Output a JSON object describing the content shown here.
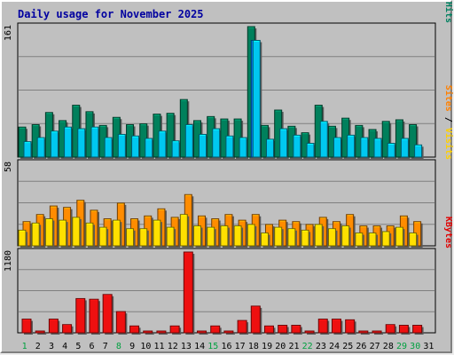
{
  "chart_data": {
    "type": "bar",
    "title": "Daily usage for November 2025",
    "categories": [
      "1",
      "2",
      "3",
      "4",
      "5",
      "6",
      "7",
      "8",
      "9",
      "10",
      "11",
      "12",
      "13",
      "14",
      "15",
      "16",
      "17",
      "18",
      "19",
      "20",
      "21",
      "22",
      "23",
      "24",
      "25",
      "26",
      "27",
      "28",
      "29",
      "30",
      "31"
    ],
    "weekend_days": [
      "1",
      "8",
      "15",
      "22",
      "29",
      "30"
    ],
    "panels": [
      {
        "name": "pages_files_hits",
        "max_label": "161",
        "ymax": 161,
        "legend": [
          {
            "text": "Pages",
            "color": "#00e0ff"
          },
          {
            "text": "Files",
            "color": "#0040ff"
          },
          {
            "text": "Hits",
            "color": "#008060"
          }
        ],
        "series": [
          {
            "name": "Hits",
            "color": "#00805c",
            "values": [
              37,
              40,
              55,
              45,
              64,
              56,
              39,
              49,
              40,
              41,
              53,
              54,
              71,
              45,
              50,
              47,
              47,
              161,
              39,
              58,
              38,
              30,
              64,
              38,
              48,
              39,
              34,
              44,
              46,
              40,
              null
            ]
          },
          {
            "name": "Files",
            "color": "#0080ff",
            "values": [
              0,
              0,
              0,
              0,
              0,
              0,
              0,
              0,
              0,
              0,
              0,
              0,
              0,
              0,
              0,
              0,
              0,
              144,
              0,
              0,
              0,
              0,
              0,
              0,
              0,
              0,
              0,
              0,
              0,
              0,
              null
            ]
          },
          {
            "name": "Pages",
            "color": "#00c8f0",
            "values": [
              19,
              24,
              32,
              37,
              35,
              37,
              24,
              28,
              26,
              23,
              32,
              20,
              40,
              28,
              35,
              26,
              24,
              144,
              22,
              35,
              27,
              17,
              44,
              24,
              27,
              24,
              23,
              17,
              23,
              15,
              null
            ]
          }
        ]
      },
      {
        "name": "visits_sites",
        "max_label": "58",
        "ymax": 58,
        "legend": [
          {
            "text": "Sites",
            "color": "#ff8000"
          },
          {
            "text": "Visits",
            "color": "#ffd000"
          }
        ],
        "series": [
          {
            "name": "Visits",
            "color": "#ff8c00",
            "values": [
              17,
              22,
              28,
              27,
              32,
              25,
              19,
              30,
              19,
              21,
              26,
              20,
              36,
              21,
              19,
              22,
              18,
              22,
              15,
              18,
              17,
              15,
              20,
              17,
              22,
              14,
              14,
              14,
              21,
              17,
              null
            ]
          },
          {
            "name": "Sites",
            "color": "#ffe000",
            "values": [
              11,
              16,
              19,
              18,
              20,
              16,
              13,
              18,
              12,
              12,
              18,
              13,
              22,
              14,
              13,
              14,
              14,
              15,
              9,
              13,
              12,
              11,
              15,
              12,
              14,
              9,
              9,
              10,
              13,
              9,
              null
            ]
          }
        ]
      },
      {
        "name": "kbytes",
        "max_label": "1180",
        "ymax": 1180,
        "legend": [
          {
            "text": "KBytes",
            "color": "#e00000"
          }
        ],
        "series": [
          {
            "name": "KBytes",
            "color": "#ee1010",
            "values": [
              200,
              10,
              200,
              120,
              500,
              490,
              560,
              310,
              100,
              10,
              20,
              100,
              1180,
              20,
              100,
              20,
              180,
              390,
              100,
              110,
              110,
              10,
              200,
              200,
              190,
              10,
              10,
              120,
              110,
              110,
              null
            ]
          }
        ]
      }
    ]
  }
}
